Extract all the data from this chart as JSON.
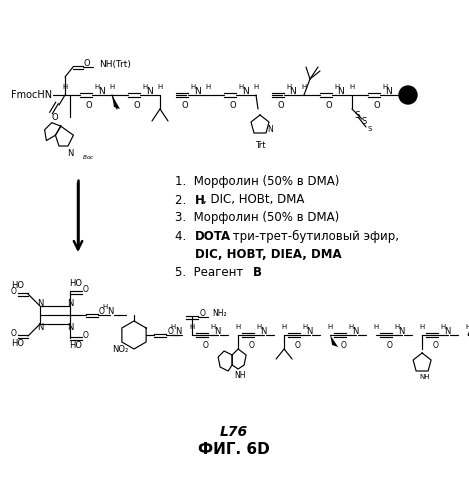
{
  "title": "ФИГ. 6D",
  "label": "L76",
  "bg_color": "#ffffff",
  "step1": "1.  Морфолин (50% в DMA)",
  "step2_pre": "2.  ",
  "step2_bold": "H",
  "step2_post": ", DIC, HOBt, DMA",
  "step3": "3.  Морфолин (50% в DMA)",
  "step4_pre": "4.  ",
  "step4_bold": "DOTA",
  "step4_post": " три-трет-бутиловый эфир,",
  "step4b_bold": "   DIC, HOBT, DIEA, DMA",
  "step5_pre": "5.  Реагент ",
  "step5_bold": "B",
  "fontsize_steps": 8.5,
  "fontsize_title": 11,
  "fontsize_label": 10
}
